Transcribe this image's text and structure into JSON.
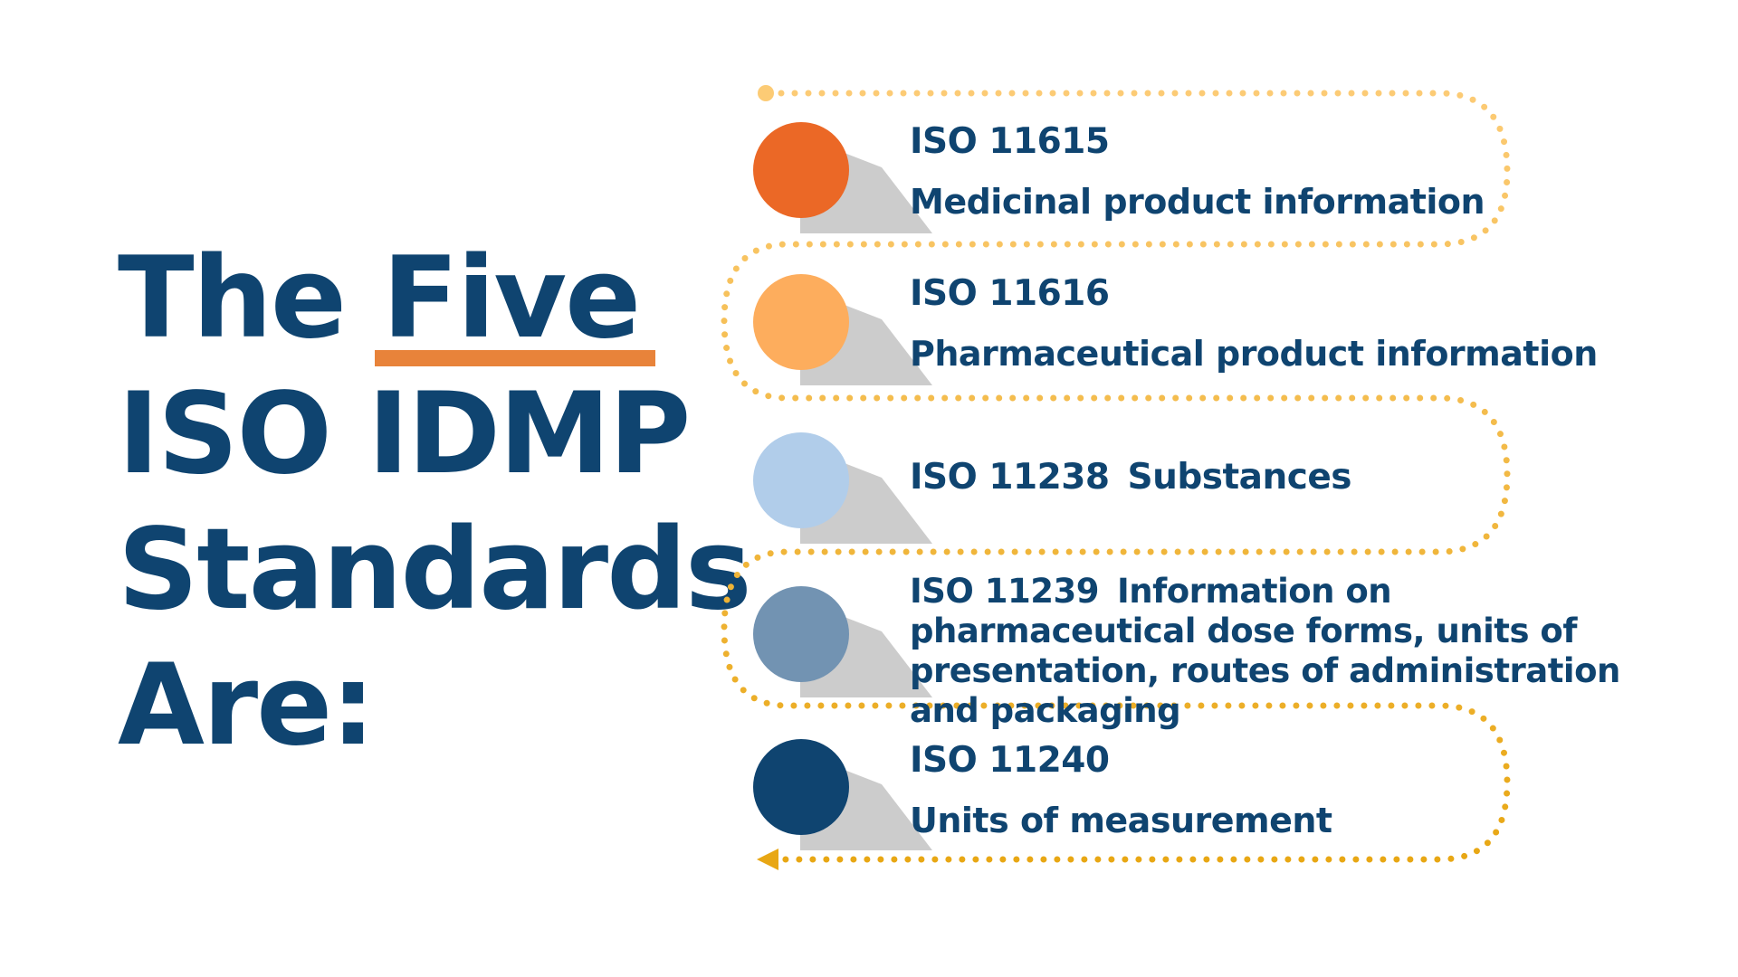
{
  "heading": {
    "line1_pre": "The",
    "line1_highlight": "Five",
    "line2": "ISO IDMP",
    "line3": "Standards",
    "line4": "Are:"
  },
  "standards": [
    {
      "code": "ISO 11615",
      "description": "Medicinal product information",
      "color": "#eb6826"
    },
    {
      "code": "ISO 11616",
      "description": "Pharmaceutical product information",
      "color": "#fdad5d"
    },
    {
      "code": "ISO 11238",
      "description": "Substances",
      "color": "#b1cdea"
    },
    {
      "code": "ISO 11239",
      "description": "Information on pharmaceutical dose forms, units of presentation, routes of administration and packaging",
      "color": "#7293b2"
    },
    {
      "code": "ISO 11240",
      "description": "Units of measurement",
      "color": "#0f4470"
    }
  ],
  "colors": {
    "heading_text": "#0f4470",
    "underline": "#e8833a",
    "path_light": "#fccb75",
    "path_dark": "#e8a714",
    "shadow": "#cccccc"
  }
}
